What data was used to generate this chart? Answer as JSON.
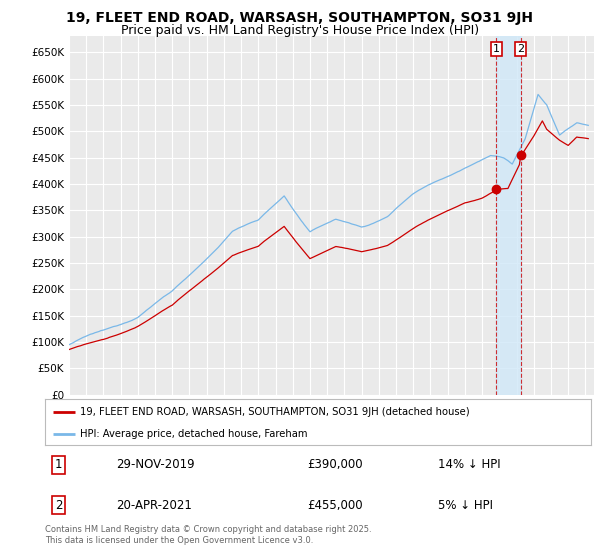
{
  "title": "19, FLEET END ROAD, WARSASH, SOUTHAMPTON, SO31 9JH",
  "subtitle": "Price paid vs. HM Land Registry's House Price Index (HPI)",
  "ylim": [
    0,
    680000
  ],
  "yticks": [
    0,
    50000,
    100000,
    150000,
    200000,
    250000,
    300000,
    350000,
    400000,
    450000,
    500000,
    550000,
    600000,
    650000
  ],
  "xlim_start": 1995.0,
  "xlim_end": 2025.5,
  "background_color": "#ffffff",
  "plot_background": "#eaeaea",
  "grid_color": "#ffffff",
  "hpi_color": "#7ab8e8",
  "price_color": "#cc0000",
  "shade_color": "#d0e8f8",
  "sale1_year": 2019,
  "sale1_month": 11,
  "sale1_price": 390000,
  "sale2_year": 2021,
  "sale2_month": 4,
  "sale2_price": 455000,
  "legend_label_price": "19, FLEET END ROAD, WARSASH, SOUTHAMPTON, SO31 9JH (detached house)",
  "legend_label_hpi": "HPI: Average price, detached house, Fareham",
  "annotation1_date": "29-NOV-2019",
  "annotation1_price": "£390,000",
  "annotation1_hpi": "14% ↓ HPI",
  "annotation2_date": "20-APR-2021",
  "annotation2_price": "£455,000",
  "annotation2_hpi": "5% ↓ HPI",
  "footer": "Contains HM Land Registry data © Crown copyright and database right 2025.\nThis data is licensed under the Open Government Licence v3.0.",
  "title_fontsize": 10,
  "subtitle_fontsize": 9
}
